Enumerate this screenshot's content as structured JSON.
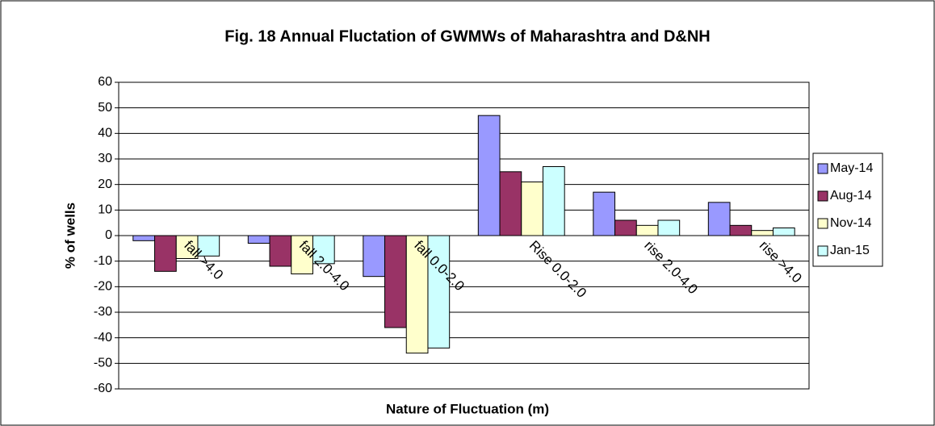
{
  "chart_data": {
    "type": "bar",
    "title": "Fig. 18 Annual Fluctation of GWMWs of Maharashtra and D&NH",
    "x_label": "Nature of Fluctuation (m)",
    "y_label": "% of wells",
    "categories": [
      "fall >4.0",
      "fall 2.0-4.0",
      "fall 0.0-2.0",
      "Rise 0.0-2.0",
      "rise 2.0-4.0",
      "rise >4.0"
    ],
    "series": [
      {
        "name": "May-14",
        "color": "#9999ff",
        "values": [
          -2,
          -3,
          -16,
          47,
          17,
          13
        ]
      },
      {
        "name": "Aug-14",
        "color": "#993366",
        "values": [
          -14,
          -12,
          -36,
          25,
          6,
          4
        ]
      },
      {
        "name": "Nov-14",
        "color": "#ffffcc",
        "values": [
          -9,
          -15,
          -46,
          21,
          4,
          2
        ]
      },
      {
        "name": "Jan-15",
        "color": "#ccffff",
        "values": [
          -8,
          -11,
          -44,
          27,
          6,
          3
        ]
      }
    ],
    "ylim": [
      -60,
      60
    ],
    "yticks": [
      -60,
      -50,
      -40,
      -30,
      -20,
      -10,
      0,
      10,
      20,
      30,
      40,
      50,
      60
    ],
    "grid": true,
    "legend": "right"
  }
}
